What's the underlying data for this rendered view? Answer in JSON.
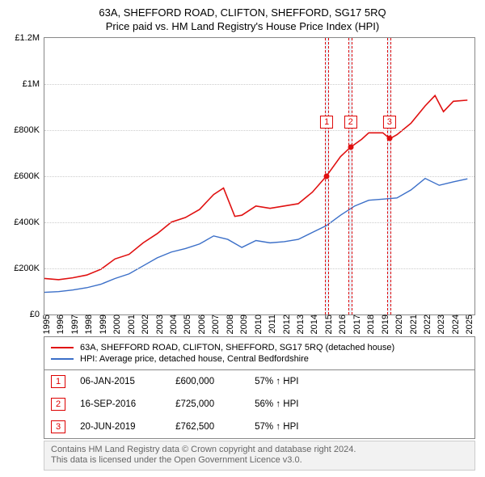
{
  "title": "63A, SHEFFORD ROAD, CLIFTON, SHEFFORD, SG17 5RQ",
  "subtitle": "Price paid vs. HM Land Registry's House Price Index (HPI)",
  "chart": {
    "type": "line",
    "background_color": "#ffffff",
    "grid_color": "#cccccc",
    "border_color": "#888888",
    "xlim": [
      1995,
      2025.5
    ],
    "ylim": [
      0,
      1200000
    ],
    "yticks": [
      {
        "v": 0,
        "label": "£0"
      },
      {
        "v": 200000,
        "label": "£200K"
      },
      {
        "v": 400000,
        "label": "£400K"
      },
      {
        "v": 600000,
        "label": "£600K"
      },
      {
        "v": 800000,
        "label": "£800K"
      },
      {
        "v": 1000000,
        "label": "£1M"
      },
      {
        "v": 1200000,
        "label": "£1.2M"
      }
    ],
    "xticks": [
      1995,
      1996,
      1997,
      1998,
      1999,
      2000,
      2001,
      2002,
      2003,
      2004,
      2005,
      2006,
      2007,
      2008,
      2009,
      2010,
      2011,
      2012,
      2013,
      2014,
      2015,
      2016,
      2017,
      2018,
      2019,
      2020,
      2021,
      2022,
      2023,
      2024,
      2025
    ],
    "series": [
      {
        "id": "property",
        "color": "#e01010",
        "width": 1.6,
        "points": [
          [
            1995,
            155000
          ],
          [
            1996,
            150000
          ],
          [
            1997,
            158000
          ],
          [
            1998,
            170000
          ],
          [
            1999,
            195000
          ],
          [
            2000,
            240000
          ],
          [
            2001,
            260000
          ],
          [
            2002,
            310000
          ],
          [
            2003,
            350000
          ],
          [
            2004,
            400000
          ],
          [
            2005,
            420000
          ],
          [
            2006,
            455000
          ],
          [
            2007,
            520000
          ],
          [
            2007.7,
            548000
          ],
          [
            2008.5,
            425000
          ],
          [
            2009,
            430000
          ],
          [
            2010,
            470000
          ],
          [
            2011,
            460000
          ],
          [
            2012,
            470000
          ],
          [
            2013,
            480000
          ],
          [
            2014,
            530000
          ],
          [
            2015,
            600000
          ],
          [
            2016,
            685000
          ],
          [
            2016.7,
            725000
          ],
          [
            2017.5,
            760000
          ],
          [
            2018,
            788000
          ],
          [
            2019,
            788000
          ],
          [
            2019.5,
            762500
          ],
          [
            2020,
            780000
          ],
          [
            2021,
            830000
          ],
          [
            2022,
            905000
          ],
          [
            2022.7,
            950000
          ],
          [
            2023.3,
            880000
          ],
          [
            2024,
            925000
          ],
          [
            2025,
            930000
          ]
        ]
      },
      {
        "id": "hpi",
        "color": "#3b6fc8",
        "width": 1.4,
        "points": [
          [
            1995,
            95000
          ],
          [
            1996,
            98000
          ],
          [
            1997,
            105000
          ],
          [
            1998,
            115000
          ],
          [
            1999,
            130000
          ],
          [
            2000,
            155000
          ],
          [
            2001,
            175000
          ],
          [
            2002,
            210000
          ],
          [
            2003,
            245000
          ],
          [
            2004,
            270000
          ],
          [
            2005,
            285000
          ],
          [
            2006,
            305000
          ],
          [
            2007,
            340000
          ],
          [
            2008,
            325000
          ],
          [
            2009,
            290000
          ],
          [
            2010,
            320000
          ],
          [
            2011,
            310000
          ],
          [
            2012,
            315000
          ],
          [
            2013,
            325000
          ],
          [
            2014,
            355000
          ],
          [
            2015,
            385000
          ],
          [
            2016,
            430000
          ],
          [
            2017,
            470000
          ],
          [
            2018,
            495000
          ],
          [
            2019,
            500000
          ],
          [
            2020,
            505000
          ],
          [
            2021,
            540000
          ],
          [
            2022,
            590000
          ],
          [
            2023,
            560000
          ],
          [
            2024,
            575000
          ],
          [
            2025,
            588000
          ]
        ]
      }
    ],
    "markers": [
      {
        "idx": "1",
        "x": 2015.02,
        "width_years": 0.3
      },
      {
        "idx": "2",
        "x": 2016.71,
        "width_years": 0.3
      },
      {
        "idx": "3",
        "x": 2019.47,
        "width_years": 0.3
      }
    ],
    "event_points": [
      {
        "x": 2015.02,
        "y": 600000,
        "color": "#e01010"
      },
      {
        "x": 2016.71,
        "y": 725000,
        "color": "#e01010"
      },
      {
        "x": 2019.47,
        "y": 762500,
        "color": "#e01010"
      }
    ]
  },
  "legend": {
    "items": [
      {
        "color": "#e01010",
        "label": "63A, SHEFFORD ROAD, CLIFTON, SHEFFORD, SG17 5RQ (detached house)"
      },
      {
        "color": "#3b6fc8",
        "label": "HPI: Average price, detached house, Central Bedfordshire"
      }
    ]
  },
  "events": [
    {
      "idx": "1",
      "date": "06-JAN-2015",
      "price": "£600,000",
      "pct": "57% ↑ HPI"
    },
    {
      "idx": "2",
      "date": "16-SEP-2016",
      "price": "£725,000",
      "pct": "56% ↑ HPI"
    },
    {
      "idx": "3",
      "date": "20-JUN-2019",
      "price": "£762,500",
      "pct": "57% ↑ HPI"
    }
  ],
  "footnote_line1": "Contains HM Land Registry data © Crown copyright and database right 2024.",
  "footnote_line2": "This data is licensed under the Open Government Licence v3.0."
}
